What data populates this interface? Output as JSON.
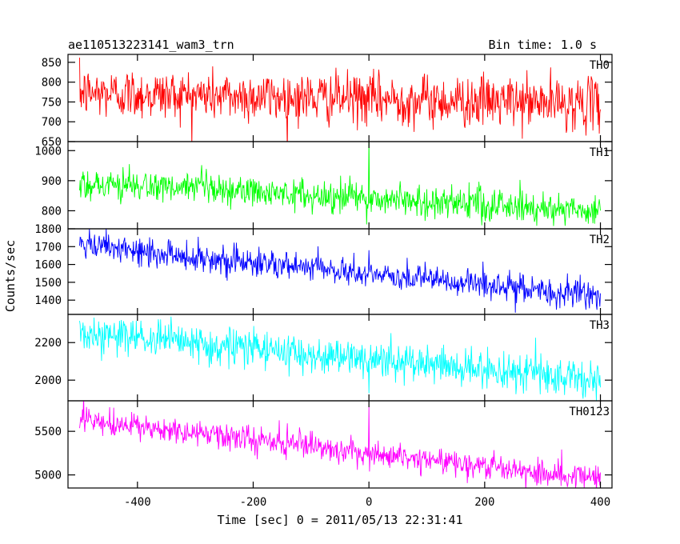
{
  "chart_data": {
    "type": "line",
    "title": "ae110513223141_wam3_trn",
    "subtitle": "Bin time: 1.0 s",
    "xlabel": "Time [sec] 0 = 2011/05/13 22:31:41",
    "ylabel": "Counts/sec",
    "xlim": [
      -520,
      420
    ],
    "x_ticks": [
      -400,
      -200,
      0,
      200,
      400
    ],
    "x_tick_labels": [
      "-400",
      "-200",
      "0",
      "200",
      "400"
    ],
    "x_range": [
      -500,
      400
    ],
    "x_step": 1,
    "grid": false,
    "panels": [
      {
        "name": "TH0",
        "color": "#ff0000",
        "ylim": [
          650,
          870
        ],
        "y_ticks": [
          650,
          700,
          750,
          800,
          850
        ],
        "y_tick_labels": [
          "650",
          "700",
          "750",
          "800",
          "850"
        ],
        "trend_start": 773,
        "trend_end": 745,
        "noise_sd": 32,
        "spikes": []
      },
      {
        "name": "TH1",
        "color": "#00ff00",
        "ylim": [
          740,
          1030
        ],
        "y_ticks": [
          800,
          900,
          1000
        ],
        "y_tick_labels": [
          "800",
          "900",
          "1000"
        ],
        "trend_start": 892,
        "trend_end": 800,
        "noise_sd": 27,
        "spikes": [
          {
            "x": 0,
            "y": 1045
          }
        ]
      },
      {
        "name": "TH2",
        "color": "#0000ff",
        "ylim": [
          1320,
          1800
        ],
        "y_ticks": [
          1400,
          1500,
          1600,
          1700,
          1800
        ],
        "y_tick_labels": [
          "1400",
          "1500",
          "1600",
          "1700",
          "1800"
        ],
        "trend_start": 1705,
        "trend_end": 1420,
        "noise_sd": 40,
        "spikes": [
          {
            "x": 0,
            "y": 1680
          }
        ]
      },
      {
        "name": "TH3",
        "color": "#00ffff",
        "ylim": [
          1890,
          2350
        ],
        "y_ticks": [
          2000,
          2200
        ],
        "y_tick_labels": [
          "2000",
          "2200"
        ],
        "trend_start": 2250,
        "trend_end": 2000,
        "noise_sd": 50,
        "spikes": [
          {
            "x": 0,
            "y": 1930
          }
        ]
      },
      {
        "name": "TH0123",
        "color": "#ff00ff",
        "ylim": [
          4850,
          5850
        ],
        "y_ticks": [
          5000,
          5500
        ],
        "y_tick_labels": [
          "5000",
          "5500"
        ],
        "trend_start": 5620,
        "trend_end": 4960,
        "noise_sd": 75,
        "spikes": [
          {
            "x": 0,
            "y": 5780
          }
        ]
      }
    ]
  }
}
